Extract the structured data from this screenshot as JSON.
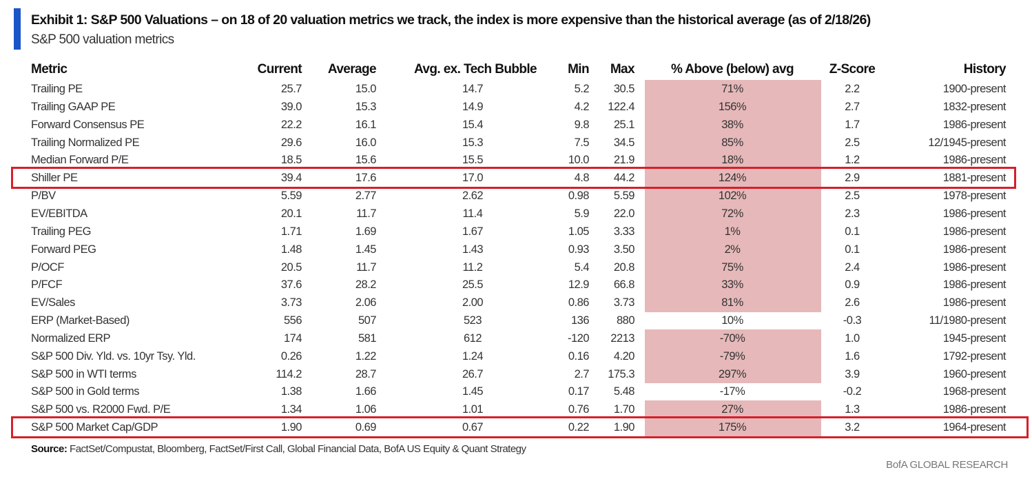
{
  "title": "Exhibit 1: S&P 500 Valuations – on 18 of 20 valuation metrics we track, the index is more expensive than the historical average (as of 2/18/26)",
  "subtitle": "S&P 500 valuation metrics",
  "source_label": "Source:",
  "source_text": "FactSet/Compustat, Bloomberg, FactSet/First Call, Global Financial Data, BofA US Equity & Quant Strategy",
  "brand": "BofA GLOBAL RESEARCH",
  "colors": {
    "accent_bar": "#1a56c8",
    "shade": "#e6b8b9",
    "highlight_box": "#d4202a"
  },
  "chart_data": {
    "type": "table",
    "columns": [
      "Metric",
      "Current",
      "Average",
      "Avg. ex. Tech Bubble",
      "Min",
      "Max",
      "% Above (below) avg",
      "Z-Score",
      "History"
    ],
    "highlighted_rows": [
      "Shiller PE",
      "S&P 500 Market Cap/GDP"
    ],
    "rows": [
      {
        "metric": "Trailing PE",
        "current": "25.7",
        "average": "15.0",
        "avg_ex": "14.7",
        "min": "5.2",
        "max": "30.5",
        "pct": "71%",
        "z": "2.2",
        "history": "1900-present",
        "shaded": true
      },
      {
        "metric": "Trailing GAAP PE",
        "current": "39.0",
        "average": "15.3",
        "avg_ex": "14.9",
        "min": "4.2",
        "max": "122.4",
        "pct": "156%",
        "z": "2.7",
        "history": "1832-present",
        "shaded": true
      },
      {
        "metric": "Forward Consensus PE",
        "current": "22.2",
        "average": "16.1",
        "avg_ex": "15.4",
        "min": "9.8",
        "max": "25.1",
        "pct": "38%",
        "z": "1.7",
        "history": "1986-present",
        "shaded": true
      },
      {
        "metric": "Trailing Normalized PE",
        "current": "29.6",
        "average": "16.0",
        "avg_ex": "15.3",
        "min": "7.5",
        "max": "34.5",
        "pct": "85%",
        "z": "2.5",
        "history": "12/1945-present",
        "shaded": true
      },
      {
        "metric": "Median Forward P/E",
        "current": "18.5",
        "average": "15.6",
        "avg_ex": "15.5",
        "min": "10.0",
        "max": "21.9",
        "pct": "18%",
        "z": "1.2",
        "history": "1986-present",
        "shaded": true
      },
      {
        "metric": "Shiller PE",
        "current": "39.4",
        "average": "17.6",
        "avg_ex": "17.0",
        "min": "4.8",
        "max": "44.2",
        "pct": "124%",
        "z": "2.9",
        "history": "1881-present",
        "shaded": true
      },
      {
        "metric": "P/BV",
        "current": "5.59",
        "average": "2.77",
        "avg_ex": "2.62",
        "min": "0.98",
        "max": "5.59",
        "pct": "102%",
        "z": "2.5",
        "history": "1978-present",
        "shaded": true
      },
      {
        "metric": "EV/EBITDA",
        "current": "20.1",
        "average": "11.7",
        "avg_ex": "11.4",
        "min": "5.9",
        "max": "22.0",
        "pct": "72%",
        "z": "2.3",
        "history": "1986-present",
        "shaded": true
      },
      {
        "metric": "Trailing PEG",
        "current": "1.71",
        "average": "1.69",
        "avg_ex": "1.67",
        "min": "1.05",
        "max": "3.33",
        "pct": "1%",
        "z": "0.1",
        "history": "1986-present",
        "shaded": true
      },
      {
        "metric": "Forward PEG",
        "current": "1.48",
        "average": "1.45",
        "avg_ex": "1.43",
        "min": "0.93",
        "max": "3.50",
        "pct": "2%",
        "z": "0.1",
        "history": "1986-present",
        "shaded": true
      },
      {
        "metric": "P/OCF",
        "current": "20.5",
        "average": "11.7",
        "avg_ex": "11.2",
        "min": "5.4",
        "max": "20.8",
        "pct": "75%",
        "z": "2.4",
        "history": "1986-present",
        "shaded": true
      },
      {
        "metric": "P/FCF",
        "current": "37.6",
        "average": "28.2",
        "avg_ex": "25.5",
        "min": "12.9",
        "max": "66.8",
        "pct": "33%",
        "z": "0.9",
        "history": "1986-present",
        "shaded": true
      },
      {
        "metric": "EV/Sales",
        "current": "3.73",
        "average": "2.06",
        "avg_ex": "2.00",
        "min": "0.86",
        "max": "3.73",
        "pct": "81%",
        "z": "2.6",
        "history": "1986-present",
        "shaded": true
      },
      {
        "metric": "ERP (Market-Based)",
        "current": "556",
        "average": "507",
        "avg_ex": "523",
        "min": "136",
        "max": "880",
        "pct": "10%",
        "z": "-0.3",
        "history": "11/1980-present",
        "shaded": false
      },
      {
        "metric": "Normalized ERP",
        "current": "174",
        "average": "581",
        "avg_ex": "612",
        "min": "-120",
        "max": "2213",
        "pct": "-70%",
        "z": "1.0",
        "history": "1945-present",
        "shaded": true
      },
      {
        "metric": "S&P 500 Div. Yld. vs. 10yr Tsy. Yld.",
        "current": "0.26",
        "average": "1.22",
        "avg_ex": "1.24",
        "min": "0.16",
        "max": "4.20",
        "pct": "-79%",
        "z": "1.6",
        "history": "1792-present",
        "shaded": true
      },
      {
        "metric": "S&P 500 in WTI terms",
        "current": "114.2",
        "average": "28.7",
        "avg_ex": "26.7",
        "min": "2.7",
        "max": "175.3",
        "pct": "297%",
        "z": "3.9",
        "history": "1960-present",
        "shaded": true
      },
      {
        "metric": "S&P 500 in Gold terms",
        "current": "1.38",
        "average": "1.66",
        "avg_ex": "1.45",
        "min": "0.17",
        "max": "5.48",
        "pct": "-17%",
        "z": "-0.2",
        "history": "1968-present",
        "shaded": false
      },
      {
        "metric": "S&P 500 vs. R2000 Fwd. P/E",
        "current": "1.34",
        "average": "1.06",
        "avg_ex": "1.01",
        "min": "0.76",
        "max": "1.70",
        "pct": "27%",
        "z": "1.3",
        "history": "1986-present",
        "shaded": true
      },
      {
        "metric": "S&P 500 Market Cap/GDP",
        "current": "1.90",
        "average": "0.69",
        "avg_ex": "0.67",
        "min": "0.22",
        "max": "1.90",
        "pct": "175%",
        "z": "3.2",
        "history": "1964-present",
        "shaded": true
      }
    ]
  }
}
